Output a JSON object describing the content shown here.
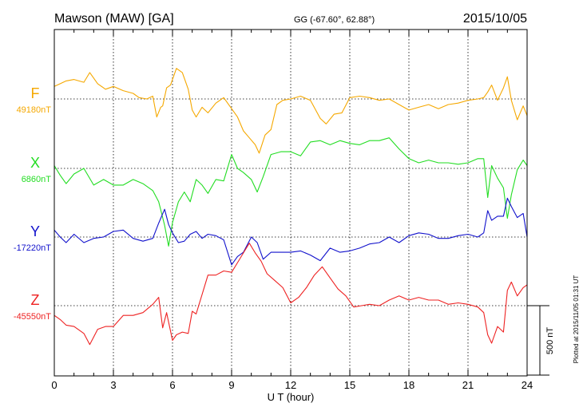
{
  "header": {
    "station": "Mawson (MAW)  [GA]",
    "coords": "GG (-67.60°,  62.88°)",
    "date": "2015/10/05"
  },
  "footer": {
    "plotted": "Plotted at 2015/11/05 01:31  UT"
  },
  "chart_data": {
    "type": "line",
    "xlabel": "U T (hour)",
    "xlim": [
      0,
      24
    ],
    "xticks": [
      0,
      3,
      6,
      9,
      12,
      15,
      18,
      21,
      24
    ],
    "grid": true,
    "scale_bar": {
      "label": "500 nT",
      "value_nT": 500
    },
    "series": [
      {
        "name": "F",
        "baseline_label": "49180nT",
        "baseline_nT": 49180,
        "color": "#f5a800",
        "x": [
          0,
          0.3,
          0.6,
          1,
          1.5,
          1.8,
          2.2,
          2.6,
          3,
          3.5,
          4,
          4.3,
          4.7,
          5,
          5.2,
          5.4,
          5.5,
          5.7,
          5.9,
          6,
          6.2,
          6.5,
          6.8,
          7,
          7.2,
          7.5,
          7.8,
          8.2,
          8.6,
          9,
          9.3,
          9.6,
          9.9,
          10.2,
          10.4,
          10.7,
          11,
          11.3,
          11.6,
          12,
          12.5,
          13,
          13.5,
          13.8,
          14.2,
          14.6,
          15,
          15.5,
          16,
          16.5,
          17,
          17.5,
          18,
          18.5,
          19,
          19.5,
          20,
          20.5,
          21,
          21.5,
          21.8,
          22,
          22.2,
          22.5,
          22.8,
          23,
          23.2,
          23.5,
          23.8,
          24
        ],
        "values": [
          49270,
          49290,
          49310,
          49320,
          49300,
          49370,
          49290,
          49250,
          49270,
          49240,
          49220,
          49190,
          49180,
          49200,
          49050,
          49120,
          49130,
          49260,
          49280,
          49320,
          49400,
          49370,
          49250,
          49100,
          49050,
          49120,
          49080,
          49150,
          49190,
          49110,
          49050,
          48950,
          48900,
          48850,
          48790,
          48920,
          48960,
          49140,
          49170,
          49180,
          49200,
          49170,
          49040,
          49000,
          49070,
          49080,
          49190,
          49200,
          49190,
          49170,
          49180,
          49140,
          49100,
          49120,
          49140,
          49110,
          49140,
          49150,
          49170,
          49180,
          49190,
          49230,
          49280,
          49170,
          49260,
          49340,
          49170,
          49030,
          49130,
          49060
        ]
      },
      {
        "name": "X",
        "baseline_label": "6860nT",
        "baseline_nT": 6860,
        "color": "#22dd22",
        "x": [
          0,
          0.3,
          0.6,
          1,
          1.5,
          2,
          2.5,
          3,
          3.5,
          4,
          4.5,
          5,
          5.3,
          5.6,
          5.8,
          6,
          6.3,
          6.6,
          6.9,
          7.2,
          7.5,
          7.8,
          8.2,
          8.6,
          9,
          9.3,
          9.6,
          10,
          10.3,
          10.6,
          11,
          11.5,
          12,
          12.5,
          13,
          13.5,
          14,
          14.5,
          15,
          15.5,
          16,
          16.5,
          17,
          17.5,
          18,
          18.5,
          19,
          19.5,
          20,
          20.5,
          21,
          21.5,
          21.8,
          22,
          22.2,
          22.5,
          22.8,
          23,
          23.2,
          23.5,
          23.8,
          24
        ],
        "values": [
          6880,
          6810,
          6750,
          6820,
          6860,
          6740,
          6780,
          6740,
          6740,
          6780,
          6750,
          6700,
          6620,
          6450,
          6300,
          6470,
          6620,
          6690,
          6620,
          6780,
          6740,
          6680,
          6780,
          6770,
          6960,
          6860,
          6830,
          6780,
          6690,
          6800,
          6960,
          6980,
          6980,
          6950,
          7050,
          7060,
          7030,
          7060,
          7040,
          7030,
          7060,
          7060,
          7080,
          7000,
          6930,
          6900,
          6920,
          6900,
          6900,
          6890,
          6900,
          6930,
          6930,
          6650,
          6880,
          6790,
          6720,
          6500,
          6670,
          6850,
          6920,
          6880
        ]
      },
      {
        "name": "Y",
        "baseline_label": "-17220nT",
        "baseline_nT": -17220,
        "color": "#1111cc",
        "x": [
          0,
          0.3,
          0.6,
          1,
          1.5,
          2,
          2.5,
          3,
          3.5,
          4,
          4.5,
          5,
          5.3,
          5.6,
          5.8,
          6,
          6.3,
          6.6,
          6.9,
          7.2,
          7.5,
          7.8,
          8.2,
          8.6,
          9,
          9.3,
          9.6,
          10,
          10.3,
          10.6,
          11,
          11.5,
          12,
          12.5,
          13,
          13.5,
          14,
          14.5,
          15,
          15.5,
          16,
          16.5,
          17,
          17.5,
          18,
          18.5,
          19,
          19.5,
          20,
          20.5,
          21,
          21.5,
          21.8,
          22,
          22.2,
          22.5,
          22.8,
          23,
          23.2,
          23.5,
          23.8,
          24
        ],
        "values": [
          -17170,
          -17220,
          -17260,
          -17200,
          -17260,
          -17230,
          -17220,
          -17180,
          -17170,
          -17230,
          -17250,
          -17230,
          -17120,
          -17020,
          -17130,
          -17190,
          -17260,
          -17250,
          -17200,
          -17180,
          -17230,
          -17200,
          -17210,
          -17240,
          -17420,
          -17360,
          -17330,
          -17220,
          -17260,
          -17380,
          -17330,
          -17330,
          -17330,
          -17320,
          -17350,
          -17390,
          -17300,
          -17330,
          -17320,
          -17300,
          -17270,
          -17260,
          -17220,
          -17260,
          -17210,
          -17190,
          -17200,
          -17230,
          -17230,
          -17210,
          -17200,
          -17220,
          -17190,
          -17030,
          -17100,
          -17070,
          -17070,
          -16940,
          -17000,
          -17080,
          -17050,
          -17220
        ]
      },
      {
        "name": "Z",
        "baseline_label": "-45550nT",
        "baseline_nT": -45550,
        "color": "#ee2222",
        "x": [
          0,
          0.3,
          0.6,
          1,
          1.5,
          1.8,
          2.2,
          2.6,
          3,
          3.5,
          4,
          4.5,
          5,
          5.3,
          5.5,
          5.7,
          6,
          6.2,
          6.5,
          6.8,
          7,
          7.2,
          7.5,
          7.8,
          8.2,
          8.6,
          9,
          9.3,
          9.6,
          9.9,
          10.2,
          10.5,
          10.8,
          11.2,
          11.6,
          12,
          12.4,
          12.8,
          13.2,
          13.6,
          14,
          14.4,
          14.8,
          15.2,
          15.6,
          16,
          16.5,
          17,
          17.5,
          18,
          18.5,
          19,
          19.5,
          20,
          20.5,
          21,
          21.5,
          21.8,
          22,
          22.2,
          22.5,
          22.8,
          23,
          23.2,
          23.5,
          23.8,
          24
        ],
        "values": [
          -45620,
          -45650,
          -45690,
          -45700,
          -45750,
          -45830,
          -45720,
          -45700,
          -45700,
          -45620,
          -45620,
          -45600,
          -45540,
          -45490,
          -45710,
          -45600,
          -45800,
          -45760,
          -45740,
          -45750,
          -45590,
          -45610,
          -45470,
          -45330,
          -45330,
          -45300,
          -45310,
          -45240,
          -45170,
          -45100,
          -45170,
          -45230,
          -45320,
          -45370,
          -45420,
          -45530,
          -45490,
          -45420,
          -45330,
          -45270,
          -45350,
          -45430,
          -45480,
          -45560,
          -45550,
          -45540,
          -45550,
          -45510,
          -45480,
          -45510,
          -45490,
          -45510,
          -45510,
          -45540,
          -45530,
          -45540,
          -45560,
          -45600,
          -45760,
          -45820,
          -45700,
          -45740,
          -45440,
          -45380,
          -45480,
          -45420,
          -45400
        ]
      }
    ]
  }
}
